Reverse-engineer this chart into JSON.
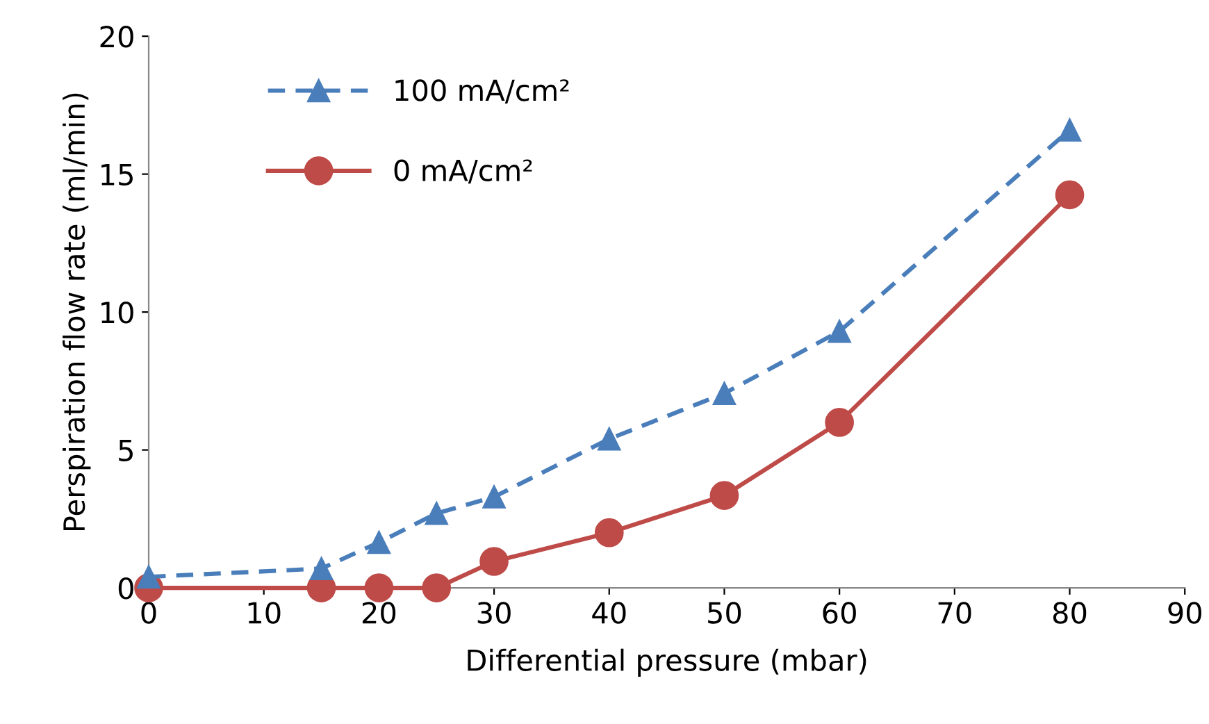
{
  "chart_data": {
    "type": "line",
    "xlabel": "Differential pressure (mbar)",
    "ylabel": "Perspiration flow rate (ml/min)",
    "xlim": [
      0,
      90
    ],
    "xticks": [
      0,
      10,
      20,
      30,
      40,
      50,
      60,
      70,
      80,
      90
    ],
    "ylim": [
      0,
      20
    ],
    "yticks": [
      0,
      5,
      10,
      15,
      20
    ],
    "grid": false,
    "legend": "top left",
    "series": [
      {
        "name": "100 mA/cm²",
        "color": "#4a7ebb",
        "marker": "triangle",
        "line_style": "dashed",
        "x": [
          0,
          15,
          20,
          25,
          30,
          40,
          50,
          60,
          80
        ],
        "values": [
          0.4,
          0.7,
          1.65,
          2.7,
          3.3,
          5.4,
          7.05,
          9.3,
          16.6
        ]
      },
      {
        "name": "0 mA/cm²",
        "color": "#be4b48",
        "marker": "circle",
        "line_style": "solid",
        "x": [
          0,
          15,
          20,
          25,
          30,
          40,
          50,
          60,
          80
        ],
        "values": [
          0,
          0,
          0,
          0,
          0.96,
          2.0,
          3.35,
          6.0,
          14.25
        ]
      }
    ]
  }
}
